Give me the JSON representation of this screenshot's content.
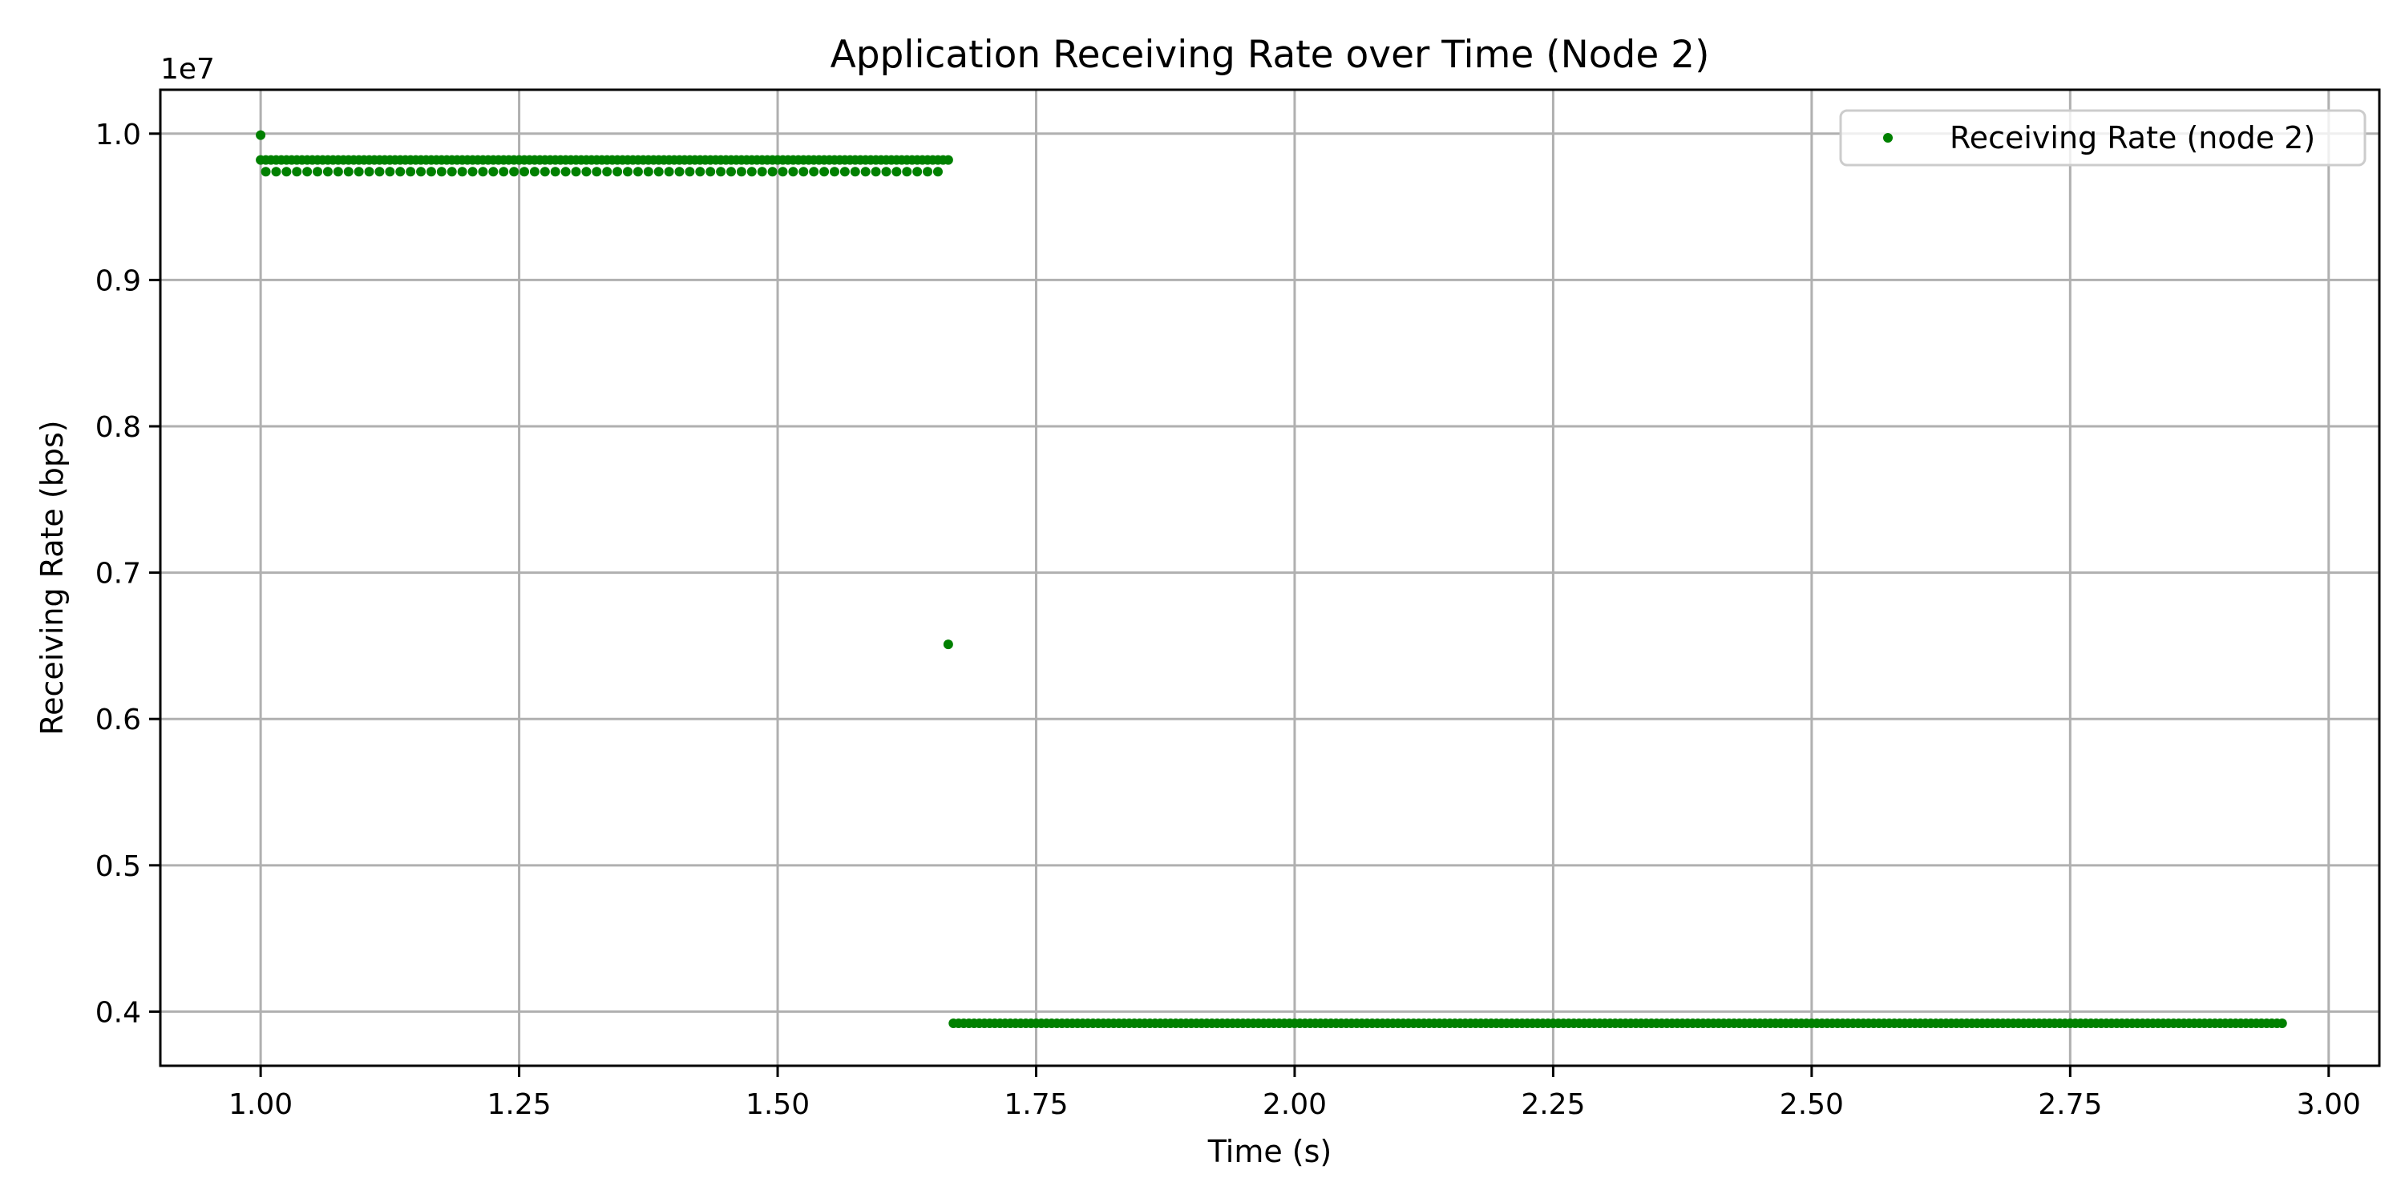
{
  "chart_data": {
    "type": "scatter",
    "title": "Application Receiving Rate over Time (Node 2)",
    "xlabel": "Time (s)",
    "ylabel": "Receiving Rate (bps)",
    "y_offset_label": "1e7",
    "xlim": [
      0.903,
      3.049
    ],
    "ylim": [
      3.63,
      10.3
    ],
    "y_scale_factor": 10000000,
    "x_ticks": [
      1.0,
      1.25,
      1.5,
      1.75,
      2.0,
      2.25,
      2.5,
      2.75,
      3.0
    ],
    "x_tick_labels": [
      "1.00",
      "1.25",
      "1.50",
      "1.75",
      "2.00",
      "2.25",
      "2.50",
      "2.75",
      "3.00"
    ],
    "y_ticks": [
      4,
      5,
      6,
      7,
      8,
      9,
      10
    ],
    "y_tick_labels": [
      "0.4",
      "0.5",
      "0.6",
      "0.7",
      "0.8",
      "0.9",
      "1.0"
    ],
    "grid": true,
    "legend_position": "top-right",
    "series": [
      {
        "name": "Receiving Rate (node 2)",
        "color": "#008000",
        "marker": "circle",
        "segments": [
          {
            "x_start": 1.0,
            "x_end": 1.0,
            "step": 0.01,
            "y": 9.99
          },
          {
            "x_start": 1.0,
            "x_end": 1.665,
            "step": 0.005,
            "y": 9.82
          },
          {
            "x_start": 1.005,
            "x_end": 1.655,
            "step": 0.01,
            "y": 9.74
          },
          {
            "x_start": 1.665,
            "x_end": 1.665,
            "step": 0.01,
            "y": 6.51
          },
          {
            "x_start": 1.67,
            "x_end": 2.955,
            "step": 0.005,
            "y": 3.92
          }
        ]
      }
    ]
  }
}
